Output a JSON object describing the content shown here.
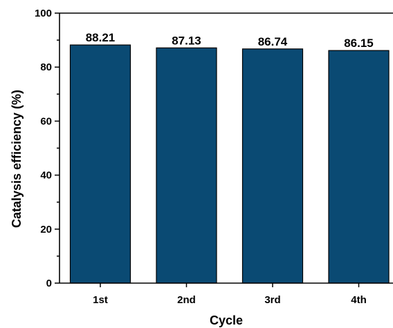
{
  "chart_data": {
    "type": "bar",
    "categories": [
      "1st",
      "2nd",
      "3rd",
      "4th"
    ],
    "values": [
      88.21,
      87.13,
      86.74,
      86.15
    ],
    "data_labels": [
      "88.21",
      "87.13",
      "86.74",
      "86.15"
    ],
    "xlabel": "Cycle",
    "ylabel": "Catalysis efficiency (%)",
    "ylim": [
      0,
      100
    ],
    "yticks": [
      "0",
      "20",
      "40",
      "60",
      "80",
      "100"
    ],
    "grid": false,
    "legend": "none",
    "bar_color": "#0a4a73",
    "bar_edge_color": "#000000"
  }
}
